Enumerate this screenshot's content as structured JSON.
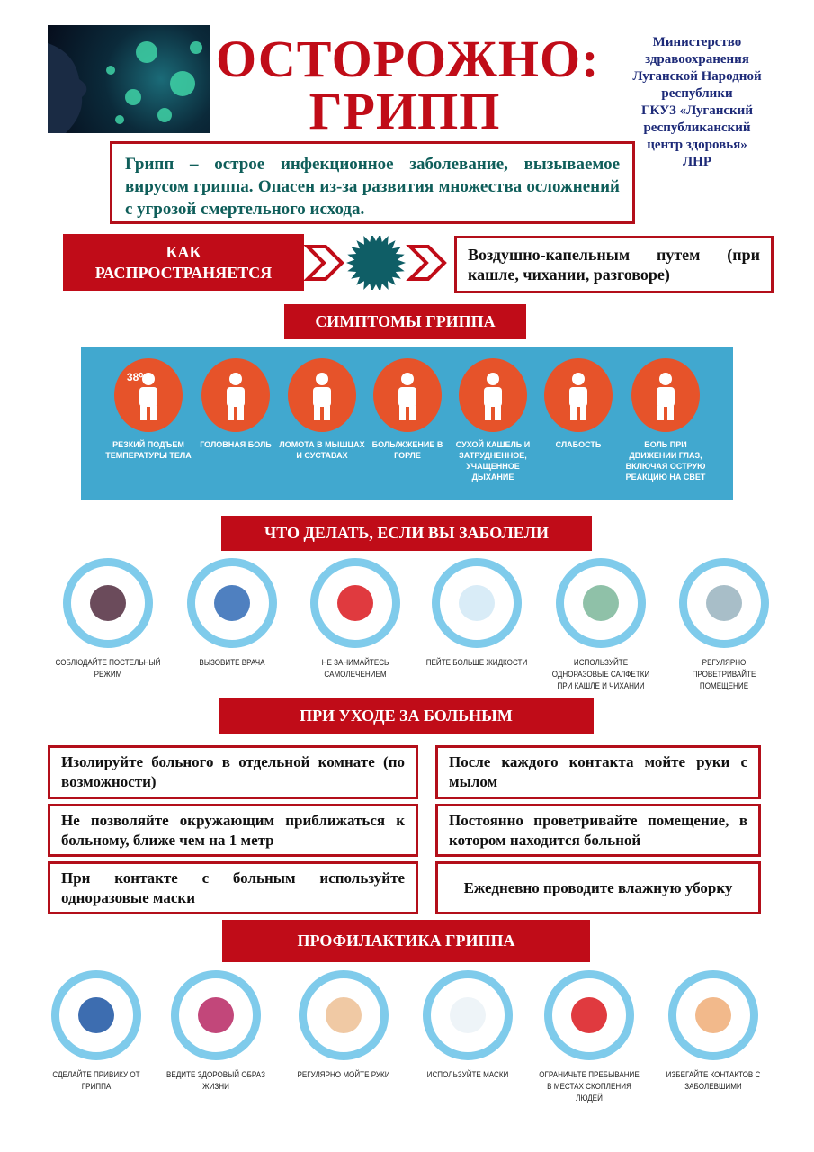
{
  "header": {
    "title_line1": "ОСТОРОЖНО:",
    "title_line2": "ГРИПП",
    "ministry": [
      "Министерство",
      "здравоохранения",
      "Луганской Народной",
      "республики",
      "ГКУЗ «Луганский",
      "республиканский",
      "центр здоровья»",
      "ЛНР"
    ]
  },
  "intro": "Грипп – острое инфекционное заболевание, вызываемое вирусом гриппа.  Опасен из-за развития множества осложнений с угрозой смертельного исхода.",
  "spread": {
    "label_line1": "КАК",
    "label_line2": "РАСПРОСТРАНЯЕТСЯ",
    "text": "Воздушно-капельным путем (при кашле, чихании, разговоре)"
  },
  "symptoms": {
    "heading": "СИМПТОМЫ ГРИППА",
    "items": [
      {
        "icon": "thermometer-icon",
        "badge": "38⁰",
        "label": "РЕЗКИЙ ПОДЪЕМ ТЕМПЕРАТУРЫ ТЕЛА"
      },
      {
        "icon": "headache-icon",
        "label": "ГОЛОВНАЯ БОЛЬ"
      },
      {
        "icon": "joint-icon",
        "label": "ЛОМОТА В МЫШЦАХ И СУСТАВАХ"
      },
      {
        "icon": "sore-throat-icon",
        "label": "БОЛЬ/ЖЖЕНИЕ В ГОРЛЕ"
      },
      {
        "icon": "cough-icon",
        "label": "СУХОЙ КАШЕЛЬ И ЗАТРУДНЕННОЕ, УЧАЩЕННОЕ ДЫХАНИЕ"
      },
      {
        "icon": "weakness-icon",
        "label": "СЛАБОСТЬ"
      },
      {
        "icon": "eye-icon",
        "label": "БОЛЬ ПРИ ДВИЖЕНИИ ГЛАЗ, ВКЛЮЧАЯ ОСТРУЮ РЕАКЦИЮ НА СВЕТ"
      }
    ]
  },
  "if_sick": {
    "heading": "ЧТО ДЕЛАТЬ, ЕСЛИ ВЫ ЗАБОЛЕЛИ",
    "items": [
      {
        "icon": "bed-rest-icon",
        "label": "СОБЛЮДАЙТЕ ПОСТЕЛЬНЫЙ РЕЖИМ"
      },
      {
        "icon": "call-doctor-icon",
        "label": "ВЫЗОВИТЕ ВРАЧА"
      },
      {
        "icon": "no-pills-icon",
        "label": "НЕ ЗАНИМАЙТЕСЬ САМОЛЕЧЕНИЕМ"
      },
      {
        "icon": "water-jug-icon",
        "label": "ПЕЙТЕ БОЛЬШЕ ЖИДКОСТИ"
      },
      {
        "icon": "tissue-icon",
        "label": "ИСПОЛЬЗУЙТЕ ОДНОРАЗОВЫЕ САЛФЕТКИ ПРИ КАШЛЕ И ЧИХАНИИ"
      },
      {
        "icon": "window-icon",
        "label": "РЕГУЛЯРНО ПРОВЕТРИВАЙТЕ ПОМЕЩЕНИЕ"
      }
    ]
  },
  "care": {
    "heading": "ПРИ УХОДЕ ЗА БОЛЬНЫМ",
    "left": [
      "Изолируйте больного в отдельной комнате (по возможности)",
      "Не позволяйте окружающим приближаться к больному, ближе чем на 1 метр",
      "При контакте с больным используйте одноразовые маски"
    ],
    "right": [
      "После каждого контакта мойте руки с мылом",
      "Постоянно проветривайте помещение, в котором находится больной",
      "Ежедневно проводите влажную уборку"
    ]
  },
  "prevention": {
    "heading": "ПРОФИЛАКТИКА ГРИППА",
    "items": [
      {
        "icon": "vaccine-icon",
        "label": "СДЕЛАЙТЕ ПРИВИКУ ОТ ГРИППА"
      },
      {
        "icon": "healthy-lifestyle-icon",
        "label": "ВЕДИТЕ ЗДОРОВЫЙ ОБРАЗ ЖИЗНИ"
      },
      {
        "icon": "hand-wash-icon",
        "label": "РЕГУЛЯРНО МОЙТЕ РУКИ"
      },
      {
        "icon": "mask-icon",
        "label": "ИСПОЛЬЗУЙТЕ МАСКИ"
      },
      {
        "icon": "no-crowd-icon",
        "label": "ОГРАНИЧЬТЕ ПРЕБЫВАНИЕ В МЕСТАХ СКОПЛЕНИЯ ЛЮДЕЙ"
      },
      {
        "icon": "avoid-contact-icon",
        "label": "ИЗБЕГАЙТЕ КОНТАКТОВ С ЗАБОЛЕВШИМИ"
      }
    ]
  },
  "colors": {
    "red": "#c00c18",
    "teal": "#0f5e5a",
    "ministry_blue": "#1d2a78",
    "panel_blue": "#41a8cf",
    "symptom_orange": "#e6532a",
    "ring_blue": "#7fcbeb"
  }
}
